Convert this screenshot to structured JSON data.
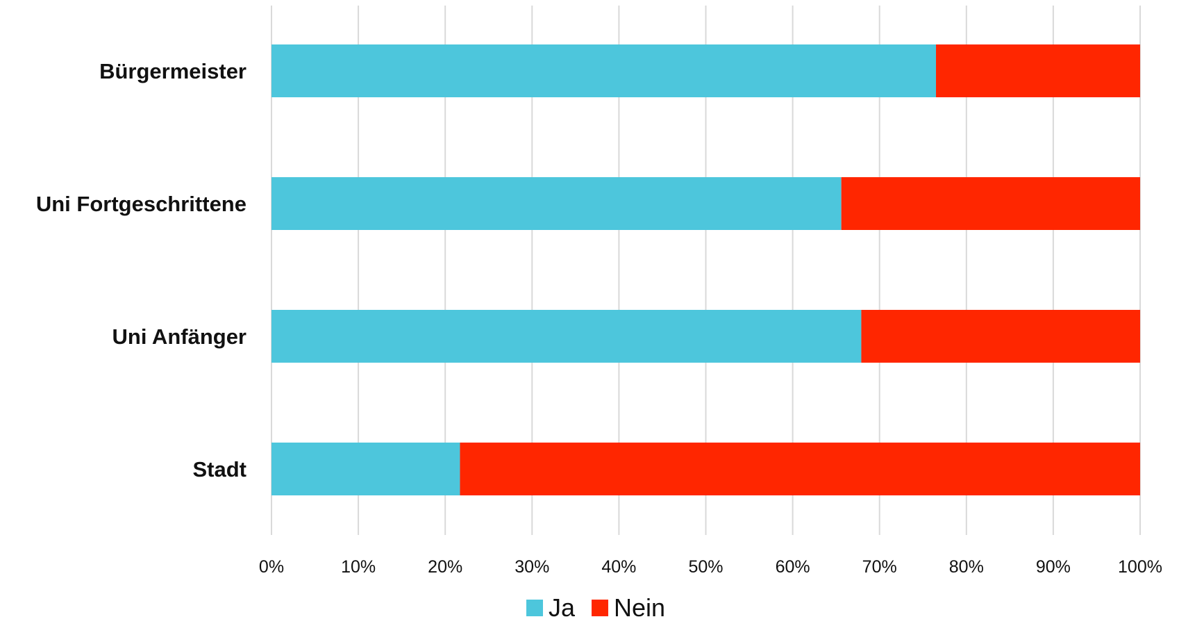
{
  "chart_data": {
    "type": "bar",
    "orientation": "horizontal",
    "stacked": true,
    "categories": [
      "Bürgermeister",
      "Uni Fortgeschrittene",
      "Uni Anfänger",
      "Stadt"
    ],
    "series": [
      {
        "name": "Ja",
        "color": "#4dc6dc",
        "values": [
          76.5,
          65.6,
          67.9,
          21.7
        ]
      },
      {
        "name": "Nein",
        "color": "#ff2600",
        "values": [
          23.5,
          34.4,
          32.1,
          78.3
        ]
      }
    ],
    "xlim": [
      0,
      100
    ],
    "x_ticks": [
      "0%",
      "10%",
      "20%",
      "30%",
      "40%",
      "50%",
      "60%",
      "70%",
      "80%",
      "90%",
      "100%"
    ],
    "grid": "vertical",
    "legend": {
      "position": "bottom",
      "entries": [
        "Ja",
        "Nein"
      ]
    },
    "title": "",
    "xlabel": "",
    "ylabel": ""
  }
}
